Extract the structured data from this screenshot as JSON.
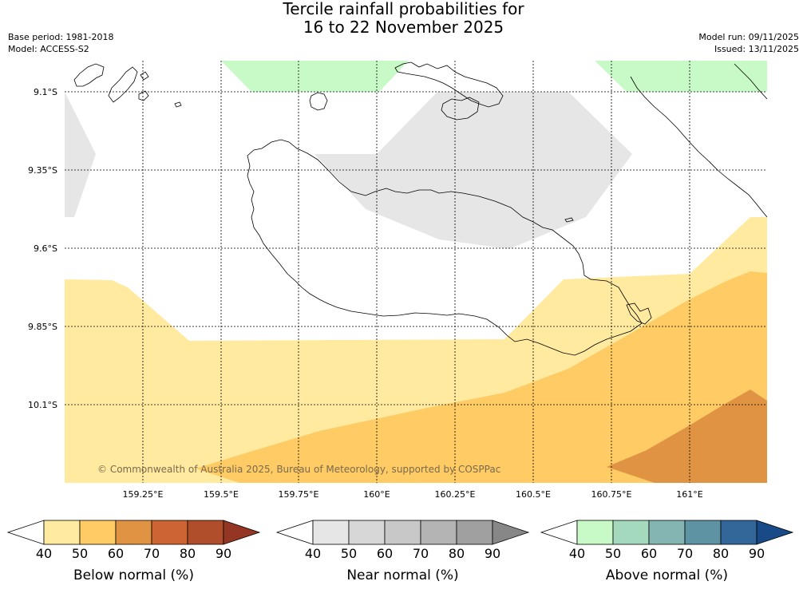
{
  "title": {
    "line1": "Tercile rainfall probabilities for",
    "line2": "16 to 22 November 2025"
  },
  "meta": {
    "base_period": "Base period: 1981-2018",
    "model": "Model: ACCESS-S2",
    "model_run": "Model run: 09/11/2025",
    "issued": "Issued: 13/11/2025"
  },
  "map": {
    "lat_labels": [
      "9.1°S",
      "9.35°S",
      "9.6°S",
      "9.85°S",
      "10.1°S"
    ],
    "lon_labels": [
      "159.25°E",
      "159.5°E",
      "159.75°E",
      "160°E",
      "160.25°E",
      "160.5°E",
      "160.75°E",
      "161°E"
    ],
    "copyright": "© Commonwealth of Australia 2025, Bureau of Meteorology, supported by COSPPac"
  },
  "legends": [
    {
      "label": "Below normal (%)",
      "ticks": [
        "40",
        "50",
        "60",
        "70",
        "80",
        "90"
      ],
      "colors": [
        "#ffeaa0",
        "#fecb65",
        "#e09443",
        "#cd6433",
        "#b04d2b",
        "#953523"
      ]
    },
    {
      "label": "Near normal (%)",
      "ticks": [
        "40",
        "50",
        "60",
        "70",
        "80",
        "90"
      ],
      "colors": [
        "#e6e6e6",
        "#d7d7d7",
        "#c8c8c8",
        "#b4b4b4",
        "#a0a0a0",
        "#878787"
      ]
    },
    {
      "label": "Above normal (%)",
      "ticks": [
        "40",
        "50",
        "60",
        "70",
        "80",
        "90"
      ],
      "colors": [
        "#c8fac8",
        "#a5d9bd",
        "#84b5b2",
        "#5d93a2",
        "#336699",
        "#174a86"
      ]
    }
  ]
}
